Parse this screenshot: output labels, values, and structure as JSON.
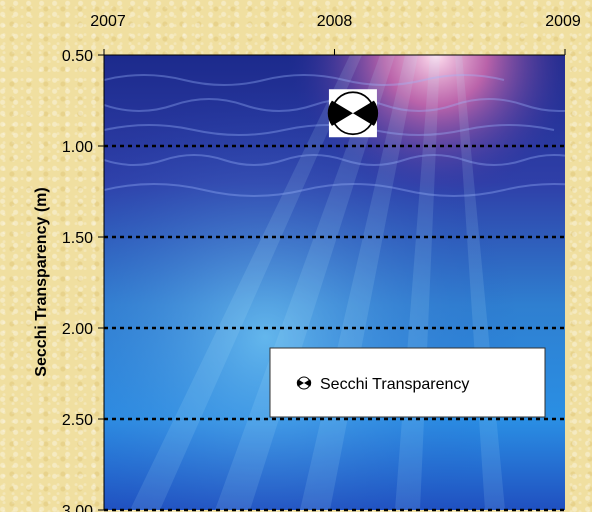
{
  "chart_data": {
    "type": "scatter",
    "title": "",
    "xlabel": "",
    "ylabel": "Secchi Transparency (m)",
    "x_ticks": [
      "2007",
      "2008",
      "2009"
    ],
    "x_tick_values": [
      2007,
      2008,
      2009
    ],
    "xlim": [
      2007,
      2009
    ],
    "y_ticks": [
      "0.50",
      "1.00",
      "1.50",
      "2.00",
      "2.50",
      "3.00"
    ],
    "y_tick_values": [
      0.5,
      1.0,
      1.5,
      2.0,
      2.5,
      3.0
    ],
    "ylim": [
      0.5,
      3.0
    ],
    "y_inverted": true,
    "x_axis_position": "top",
    "grid": "horizontal dotted",
    "legend_position": "lower-right",
    "series": [
      {
        "name": "Secchi Transparency",
        "marker": "secchi-disk",
        "points": [
          {
            "x": 2008.08,
            "y": 0.82
          }
        ]
      }
    ]
  },
  "colors": {
    "background": "#f0dfa0",
    "plot_water_top": "#1c2a8c",
    "plot_water_bottom": "#2f8fe0",
    "grid": "#000000",
    "legend_bg": "#ffffff"
  }
}
